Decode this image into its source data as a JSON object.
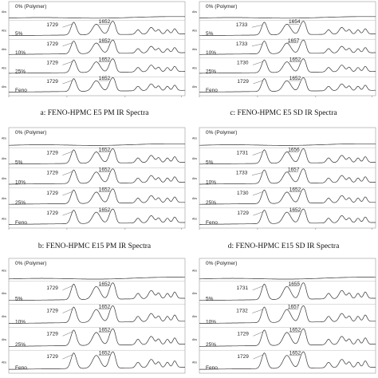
{
  "chart_data": [
    {
      "type": "line",
      "caption": "a: FENO-HPMC E5 PM IR Spectra",
      "series": [
        {
          "name": "0% (Polymer)",
          "peaks": []
        },
        {
          "name": "5%",
          "peaks": [
            1729,
            1652
          ]
        },
        {
          "name": "10%",
          "peaks": [
            1729,
            1652
          ]
        },
        {
          "name": "25%",
          "peaks": [
            1729,
            1652
          ]
        },
        {
          "name": "Feno",
          "peaks": [
            1729,
            1652
          ]
        }
      ]
    },
    {
      "type": "line",
      "caption": "c: FENO-HPMC E5 SD IR Spectra",
      "series": [
        {
          "name": "0% (Polymer)",
          "peaks": []
        },
        {
          "name": "5%",
          "peaks": [
            1733,
            1654
          ]
        },
        {
          "name": "10%",
          "peaks": [
            1733,
            1657
          ]
        },
        {
          "name": "25%",
          "peaks": [
            1730,
            1652
          ]
        },
        {
          "name": "Feno",
          "peaks": [
            1729,
            1652
          ]
        }
      ]
    },
    {
      "type": "line",
      "caption": "b: FENO-HPMC E15 PM IR Spectra",
      "series": [
        {
          "name": "0% (Polymer)",
          "peaks": []
        },
        {
          "name": "5%",
          "peaks": [
            1729,
            1652
          ]
        },
        {
          "name": "10%",
          "peaks": [
            1729,
            1652
          ]
        },
        {
          "name": "25%",
          "peaks": [
            1729,
            1652
          ]
        },
        {
          "name": "Feno",
          "peaks": [
            1729,
            1652
          ]
        }
      ]
    },
    {
      "type": "line",
      "caption": "d: FENO-HPMC E15 SD IR Spectra",
      "series": [
        {
          "name": "0% (Polymer)",
          "peaks": []
        },
        {
          "name": "5%",
          "peaks": [
            1731,
            1656
          ]
        },
        {
          "name": "10%",
          "peaks": [
            1733,
            1657
          ]
        },
        {
          "name": "25%",
          "peaks": [
            1730,
            1652
          ]
        },
        {
          "name": "Feno",
          "peaks": [
            1729,
            1652
          ]
        }
      ]
    },
    {
      "type": "line",
      "caption": "",
      "series": [
        {
          "name": "0% (Polymer)",
          "peaks": []
        },
        {
          "name": "5%",
          "peaks": [
            1729,
            1652
          ]
        },
        {
          "name": "10%",
          "peaks": [
            1729,
            1652
          ]
        },
        {
          "name": "25%",
          "peaks": [
            1729,
            1652
          ]
        },
        {
          "name": "Feno",
          "peaks": [
            1729,
            1652
          ]
        }
      ]
    },
    {
      "type": "line",
      "caption": "",
      "series": [
        {
          "name": "0% (Polymer)",
          "peaks": []
        },
        {
          "name": "5%",
          "peaks": [
            1731,
            1655
          ]
        },
        {
          "name": "10%",
          "peaks": [
            1732,
            1657
          ]
        },
        {
          "name": "25%",
          "peaks": [
            1729,
            1652
          ]
        },
        {
          "name": "Feno",
          "peaks": [
            1729,
            1652
          ]
        }
      ]
    }
  ]
}
